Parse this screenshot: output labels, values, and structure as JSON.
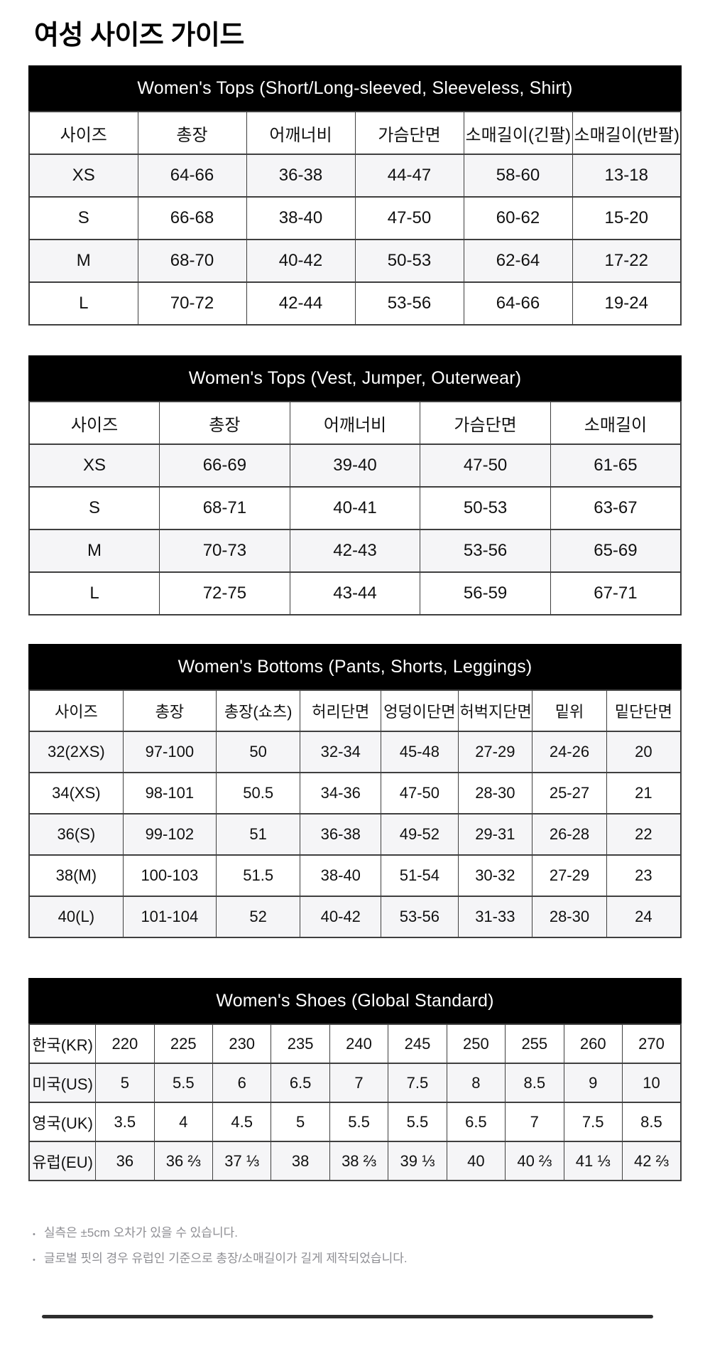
{
  "page": {
    "title": "여성 사이즈 가이드"
  },
  "colors": {
    "section_header_bg": "#000000",
    "section_header_text": "#ffffff",
    "row_alt_bg": "#f5f5f7",
    "table_border": "#3f3f3f",
    "footnote_text": "#8e8e93",
    "divider": "#2e2e2e"
  },
  "tables": [
    {
      "id": "tops1",
      "title": "Women's Tops (Short/Long-sleeved, Sleeveless, Shirt)",
      "columns": [
        "사이즈",
        "총장",
        "어깨너비",
        "가슴단면",
        "소매길이(긴팔)",
        "소매길이(반팔)"
      ],
      "rows": [
        [
          "XS",
          "64-66",
          "36-38",
          "44-47",
          "58-60",
          "13-18"
        ],
        [
          "S",
          "66-68",
          "38-40",
          "47-50",
          "60-62",
          "15-20"
        ],
        [
          "M",
          "68-70",
          "40-42",
          "50-53",
          "62-64",
          "17-22"
        ],
        [
          "L",
          "70-72",
          "42-44",
          "53-56",
          "64-66",
          "19-24"
        ]
      ]
    },
    {
      "id": "tops2",
      "title": "Women's Tops (Vest, Jumper, Outerwear)",
      "columns": [
        "사이즈",
        "총장",
        "어깨너비",
        "가슴단면",
        "소매길이"
      ],
      "rows": [
        [
          "XS",
          "66-69",
          "39-40",
          "47-50",
          "61-65"
        ],
        [
          "S",
          "68-71",
          "40-41",
          "50-53",
          "63-67"
        ],
        [
          "M",
          "70-73",
          "42-43",
          "53-56",
          "65-69"
        ],
        [
          "L",
          "72-75",
          "43-44",
          "56-59",
          "67-71"
        ]
      ]
    },
    {
      "id": "bottoms",
      "title": "Women's Bottoms (Pants, Shorts, Leggings)",
      "columns": [
        "사이즈",
        "총장",
        "총장(쇼츠)",
        "허리단면",
        "엉덩이단면",
        "허벅지단면",
        "밑위",
        "밑단단면"
      ],
      "rows": [
        [
          "32(2XS)",
          "97-100",
          "50",
          "32-34",
          "45-48",
          "27-29",
          "24-26",
          "20"
        ],
        [
          "34(XS)",
          "98-101",
          "50.5",
          "34-36",
          "47-50",
          "28-30",
          "25-27",
          "21"
        ],
        [
          "36(S)",
          "99-102",
          "51",
          "36-38",
          "49-52",
          "29-31",
          "26-28",
          "22"
        ],
        [
          "38(M)",
          "100-103",
          "51.5",
          "38-40",
          "51-54",
          "30-32",
          "27-29",
          "23"
        ],
        [
          "40(L)",
          "101-104",
          "52",
          "40-42",
          "53-56",
          "31-33",
          "28-30",
          "24"
        ]
      ]
    },
    {
      "id": "shoes",
      "title": "Women's Shoes (Global Standard)",
      "columns": null,
      "rows": [
        [
          "한국(KR)",
          "220",
          "225",
          "230",
          "235",
          "240",
          "245",
          "250",
          "255",
          "260",
          "270"
        ],
        [
          "미국(US)",
          "5",
          "5.5",
          "6",
          "6.5",
          "7",
          "7.5",
          "8",
          "8.5",
          "9",
          "10"
        ],
        [
          "영국(UK)",
          "3.5",
          "4",
          "4.5",
          "5",
          "5.5",
          "5.5",
          "6.5",
          "7",
          "7.5",
          "8.5"
        ],
        [
          "유럽(EU)",
          "36",
          "36 ⅔",
          "37 ⅓",
          "38",
          "38 ⅔",
          "39 ⅓",
          "40",
          "40 ⅔",
          "41 ⅓",
          "42 ⅔"
        ]
      ]
    }
  ],
  "footnotes": [
    "실측은 ±5cm 오차가 있을 수 있습니다.",
    "글로벌 핏의 경우 유럽인 기준으로 총장/소매길이가 길게 제작되었습니다."
  ],
  "bullet_glyph": "•"
}
